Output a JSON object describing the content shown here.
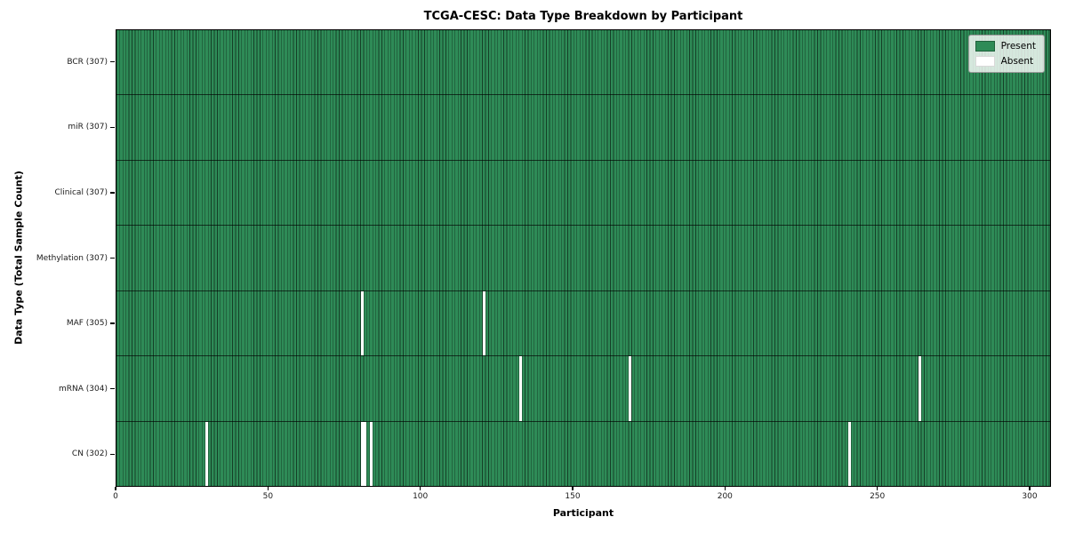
{
  "title": "TCGA-CESC: Data Type Breakdown by Participant",
  "xlabel": "Participant",
  "ylabel": "Data Type (Total Sample Count)",
  "legend": {
    "present_label": "Present",
    "absent_label": "Absent",
    "position": "upper right"
  },
  "colors": {
    "present": "#2e8b57",
    "absent": "#ffffff",
    "cell_edge": "rgba(0,0,0,0.55)",
    "row_separator": "rgba(0,0,0,0.65)"
  },
  "chart_data": {
    "type": "heatmap",
    "title": "TCGA-CESC: Data Type Breakdown by Participant",
    "xlabel": "Participant",
    "ylabel": "Data Type (Total Sample Count)",
    "n_participants": 307,
    "x_ticks": [
      0,
      50,
      100,
      150,
      200,
      250,
      300
    ],
    "xlim": [
      0,
      307
    ],
    "grid": "cell-edges",
    "legend_entries": [
      "Present",
      "Absent"
    ],
    "legend_position": "upper right",
    "values_meaning": "1 = data type present for participant (green), 0 = absent (white)",
    "rows": [
      {
        "label": "BCR",
        "total": 307,
        "absent_participants": []
      },
      {
        "label": "miR",
        "total": 307,
        "absent_participants": []
      },
      {
        "label": "Clinical",
        "total": 307,
        "absent_participants": []
      },
      {
        "label": "Methylation",
        "total": 307,
        "absent_participants": []
      },
      {
        "label": "MAF",
        "total": 305,
        "absent_participants": [
          80,
          120
        ]
      },
      {
        "label": "mRNA",
        "total": 304,
        "absent_participants": [
          132,
          168,
          263
        ]
      },
      {
        "label": "CN",
        "total": 302,
        "absent_participants": [
          29,
          80,
          81,
          83,
          240
        ]
      }
    ]
  }
}
